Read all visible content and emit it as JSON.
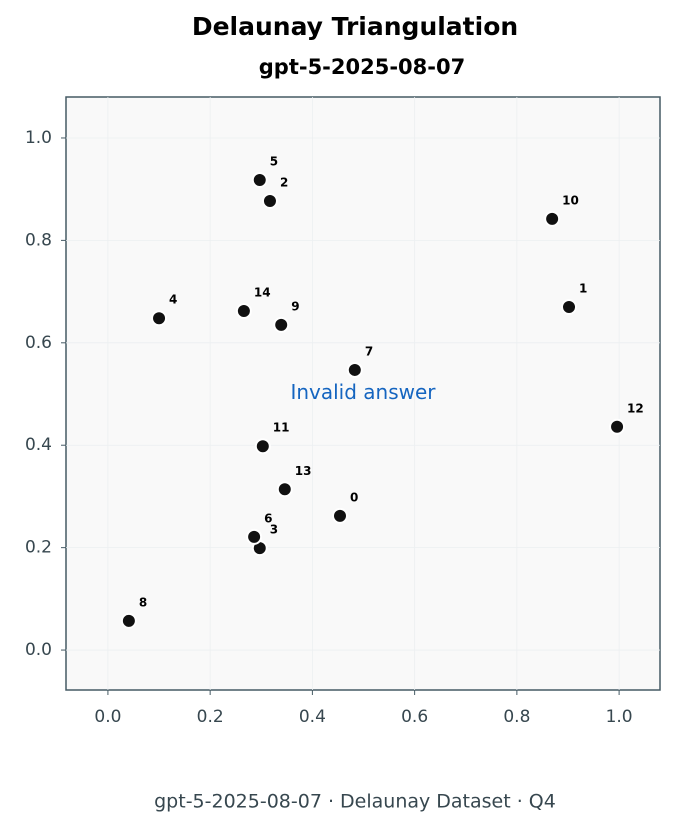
{
  "chart_data": {
    "type": "scatter",
    "title": "Delaunay Triangulation",
    "subtitle": "gpt-5-2025-08-07",
    "annotation": "Invalid answer",
    "footer": "gpt-5-2025-08-07 · Delaunay Dataset · Q4",
    "x": [
      0.454,
      0.902,
      0.317,
      0.297,
      0.1,
      0.297,
      0.286,
      0.483,
      0.041,
      0.339,
      0.869,
      0.303,
      0.996,
      0.346,
      0.266
    ],
    "series": [
      {
        "color": "#111111",
        "values": [
          0.262,
          0.67,
          0.877,
          0.199,
          0.648,
          0.918,
          0.221,
          0.547,
          0.057,
          0.635,
          0.842,
          0.398,
          0.436,
          0.314,
          0.662
        ],
        "point_labels": [
          "0",
          "1",
          "2",
          "3",
          "4",
          "5",
          "6",
          "7",
          "8",
          "9",
          "10",
          "11",
          "12",
          "13",
          "14"
        ]
      }
    ],
    "xlim": [
      -0.082,
      1.08
    ],
    "ylim": [
      -0.078,
      1.08
    ],
    "xticks": [
      {
        "value": 0,
        "label": "0.0"
      },
      {
        "value": 0.2,
        "label": "0.2"
      },
      {
        "value": 0.4,
        "label": "0.4"
      },
      {
        "value": 0.6,
        "label": "0.6"
      },
      {
        "value": 0.8,
        "label": "0.8"
      },
      {
        "value": 1,
        "label": "1.0"
      }
    ],
    "yticks": [
      {
        "value": 0,
        "label": "0.0"
      },
      {
        "value": 0.2,
        "label": "0.2"
      },
      {
        "value": 0.4,
        "label": "0.4"
      },
      {
        "value": 0.6,
        "label": "0.6"
      },
      {
        "value": 0.8,
        "label": "0.8"
      },
      {
        "value": 1,
        "label": "1.0"
      }
    ],
    "grid": true
  }
}
